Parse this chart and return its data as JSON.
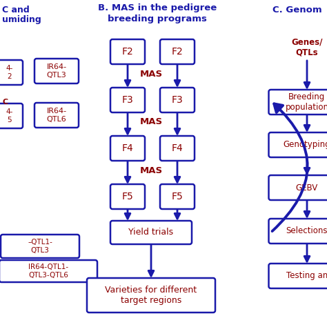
{
  "bg_color": "#ffffff",
  "dark_blue": "#1a1aaa",
  "dark_red": "#8b0000",
  "title_B": "B. MAS in the pedigree\nbreeding programs",
  "title_C": "C. Genom",
  "title_A1": "C and",
  "title_A2": "umiding",
  "box_B_left": [
    "F2",
    "F3",
    "F4",
    "F5"
  ],
  "box_B_right": [
    "F2",
    "F3",
    "F4",
    "F5"
  ],
  "mas_labels": [
    "MAS",
    "MAS",
    "MAS"
  ],
  "yield_label": "Yield trials",
  "varieties_label": "Varieties for different\ntarget regions",
  "box_C": [
    "Breeding\npopulation",
    "Genotyping",
    "GEBV",
    "Selections",
    "Testing an"
  ],
  "genes_label": "Genes/\nQTLs",
  "box_A_right1": "IR64-\nQTL3",
  "box_A_right2": "IR64-\nQTL6",
  "box_A_partial1": "4-\n2",
  "box_A_partial2": "4-\n5",
  "box_A_C_label": "C",
  "box_A_bot1": "–QTL1-\nQTL3",
  "box_A_bot2": "IR64-QTL1-\nQTL3-QTL6",
  "figw": 4.74,
  "figh": 4.74,
  "dpi": 100
}
